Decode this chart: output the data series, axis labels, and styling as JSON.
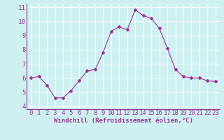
{
  "x": [
    0,
    1,
    2,
    3,
    4,
    5,
    6,
    7,
    8,
    9,
    10,
    11,
    12,
    13,
    14,
    15,
    16,
    17,
    18,
    19,
    20,
    21,
    22,
    23
  ],
  "y": [
    6.0,
    6.1,
    5.5,
    4.6,
    4.6,
    5.1,
    5.8,
    6.5,
    6.6,
    7.8,
    9.3,
    9.6,
    9.4,
    10.8,
    10.4,
    10.2,
    9.5,
    8.1,
    6.6,
    6.1,
    6.0,
    6.0,
    5.8,
    5.75
  ],
  "line_color": "#993399",
  "marker": "D",
  "marker_size": 2.0,
  "bg_color": "#cff0f0",
  "grid_color": "#ffffff",
  "xlabel": "Windchill (Refroidissement éolien,°C)",
  "xlabel_color": "#993399",
  "tick_color": "#993399",
  "ylim": [
    3.8,
    11.2
  ],
  "xlim": [
    -0.5,
    23.5
  ],
  "yticks": [
    4,
    5,
    6,
    7,
    8,
    9,
    10,
    11
  ],
  "xticks": [
    0,
    1,
    2,
    3,
    4,
    5,
    6,
    7,
    8,
    9,
    10,
    11,
    12,
    13,
    14,
    15,
    16,
    17,
    18,
    19,
    20,
    21,
    22,
    23
  ],
  "linewidth": 0.8,
  "font_size": 6.5
}
